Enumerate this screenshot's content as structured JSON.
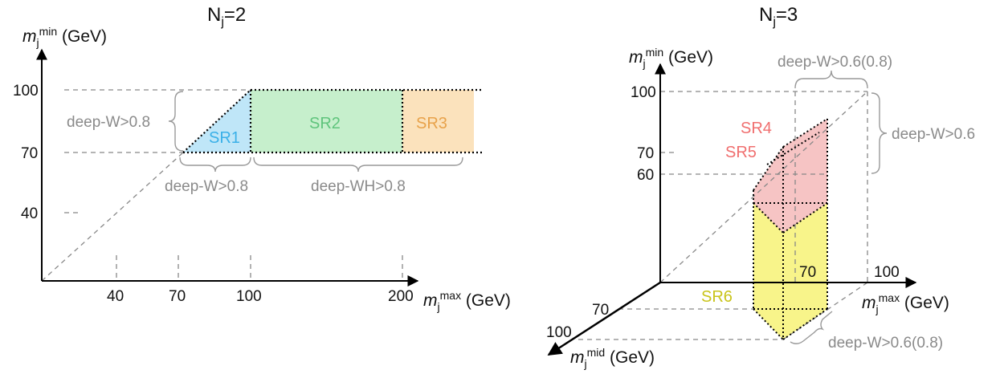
{
  "colors": {
    "sr1": "#3ab0e8",
    "sr1_fill": "#bfe6f8",
    "sr2": "#5fc47c",
    "sr2_fill": "#c6efcc",
    "sr3": "#e8a24a",
    "sr3_fill": "#fbe2bc",
    "sr45": "#f06f6f",
    "sr45_fill": "#f6c4c4",
    "sr6": "#c9c41a",
    "sr6_fill": "#f8f48a",
    "annotation": "#8a8a8a"
  },
  "left": {
    "title_main": "N",
    "title_sub": "j",
    "title_tail": "=2",
    "y_axis": {
      "symbol": "m",
      "sub": "j",
      "sup": "min",
      "unit": " (GeV)"
    },
    "x_axis": {
      "symbol": "m",
      "sub": "j",
      "sup": "max",
      "unit": " (GeV)"
    },
    "y_ticks": [
      "100",
      "70",
      "40"
    ],
    "x_ticks": [
      "40",
      "70",
      "100",
      "200"
    ],
    "regions": {
      "sr1": "SR1",
      "sr2": "SR2",
      "sr3": "SR3"
    },
    "annotations": {
      "vertical_cut": "deep-W>0.8",
      "bottom_cut_1": "deep-W>0.8",
      "bottom_cut_2": "deep-WH>0.8"
    }
  },
  "right": {
    "title_main": "N",
    "title_sub": "j",
    "title_tail": "=3",
    "y_axis": {
      "symbol": "m",
      "sub": "j",
      "sup": "min",
      "unit": " (GeV)"
    },
    "x_axis": {
      "symbol": "m",
      "sub": "j",
      "sup": "max",
      "unit": " (GeV)"
    },
    "z_axis": {
      "symbol": "m",
      "sub": "j",
      "sup": "mid",
      "unit": " (GeV)"
    },
    "y_ticks": [
      "100",
      "70",
      "60"
    ],
    "x_tick": "100",
    "z_ticks": [
      "70",
      "100"
    ],
    "inner_label": "70",
    "regions": {
      "sr4": "SR4",
      "sr5": "SR5",
      "sr6": "SR6"
    },
    "annotations": {
      "top_cut": "deep-W>0.6(0.8)",
      "side_cut": "deep-W>0.6",
      "bottom_cut": "deep-W>0.6(0.8)"
    }
  }
}
